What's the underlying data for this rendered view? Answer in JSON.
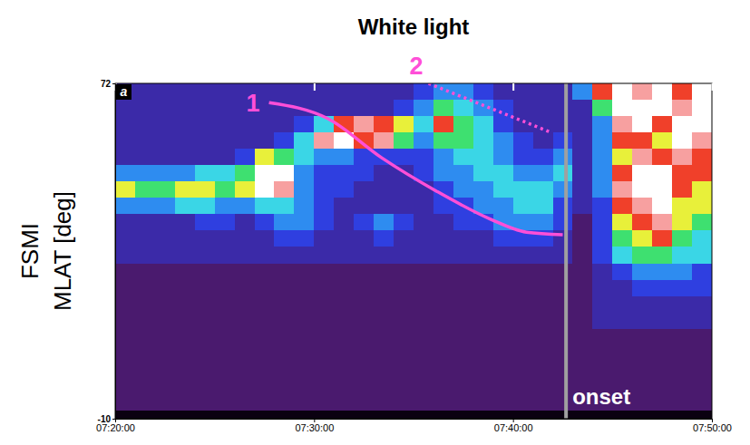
{
  "chart_data": {
    "type": "heatmap",
    "title": "White light",
    "panel": "a",
    "ylabel": [
      "FSMI",
      "MLAT [deg]"
    ],
    "xlim": [
      "07:20:00",
      "07:50:00"
    ],
    "xticks": [
      "07:20:00",
      "07:30:00",
      "07:40:00",
      "07:50:00"
    ],
    "ylim": [
      -10,
      72
    ],
    "yticks": [
      72,
      -10
    ],
    "clim": [
      0,
      10
    ],
    "x_edges": [
      "07:20:00",
      "07:21:00",
      "07:22:00",
      "07:23:00",
      "07:24:00",
      "07:25:00",
      "07:26:00",
      "07:27:00",
      "07:28:00",
      "07:29:00",
      "07:30:00",
      "07:31:00",
      "07:32:00",
      "07:33:00",
      "07:34:00",
      "07:35:00",
      "07:36:00",
      "07:37:00",
      "07:38:00",
      "07:39:00",
      "07:40:00",
      "07:41:00",
      "07:42:00",
      "07:43:00",
      "07:44:00",
      "07:45:00",
      "07:46:00",
      "07:47:00",
      "07:48:00",
      "07:49:00",
      "07:50:00"
    ],
    "y_edges": [
      72,
      68,
      64,
      60,
      56,
      52,
      48,
      44,
      40,
      36,
      32,
      28,
      24,
      20,
      16,
      12,
      8,
      4,
      0,
      -4,
      -8,
      -10
    ],
    "cells": [
      [
        2,
        2,
        2,
        2,
        2,
        4,
        7,
        4,
        2,
        2,
        2,
        1,
        1,
        1,
        1,
        1,
        1,
        1,
        1,
        1,
        0
      ],
      [
        2,
        2,
        2,
        2,
        2,
        4,
        6,
        4,
        2,
        2,
        2,
        1,
        1,
        1,
        1,
        1,
        1,
        1,
        1,
        1,
        0
      ],
      [
        2,
        2,
        2,
        2,
        2,
        4,
        6,
        4,
        2,
        2,
        2,
        1,
        1,
        1,
        1,
        1,
        1,
        1,
        1,
        1,
        0
      ],
      [
        2,
        2,
        2,
        2,
        2,
        4,
        7,
        5,
        2,
        2,
        2,
        1,
        1,
        1,
        1,
        1,
        1,
        1,
        1,
        1,
        0
      ],
      [
        2,
        2,
        2,
        2,
        2,
        5,
        7,
        5,
        3,
        2,
        2,
        1,
        1,
        1,
        1,
        1,
        1,
        1,
        1,
        1,
        0
      ],
      [
        2,
        2,
        2,
        2,
        2,
        5,
        6,
        4,
        3,
        2,
        2,
        1,
        1,
        1,
        1,
        1,
        1,
        1,
        1,
        1,
        0
      ],
      [
        2,
        2,
        2,
        2,
        3,
        6,
        7,
        4,
        2,
        2,
        2,
        1,
        1,
        1,
        1,
        1,
        1,
        1,
        1,
        1,
        0
      ],
      [
        2,
        2,
        2,
        2,
        7,
        10,
        10,
        5,
        3,
        2,
        2,
        1,
        1,
        1,
        1,
        1,
        1,
        1,
        1,
        1,
        0
      ],
      [
        2,
        2,
        2,
        3,
        6,
        10,
        9,
        5,
        4,
        3,
        2,
        1,
        1,
        1,
        1,
        1,
        1,
        1,
        1,
        1,
        0
      ],
      [
        2,
        2,
        3,
        5,
        5,
        4,
        4,
        4,
        4,
        3,
        2,
        1,
        1,
        1,
        1,
        1,
        1,
        1,
        1,
        1,
        0
      ],
      [
        2,
        2,
        5,
        9,
        4,
        3,
        3,
        3,
        3,
        2,
        2,
        1,
        1,
        1,
        1,
        1,
        1,
        1,
        1,
        1,
        0
      ],
      [
        2,
        2,
        8,
        10,
        4,
        3,
        3,
        2,
        2,
        2,
        2,
        1,
        1,
        1,
        1,
        1,
        1,
        1,
        1,
        1,
        0
      ],
      [
        2,
        2,
        9,
        8,
        3,
        3,
        2,
        2,
        3,
        2,
        2,
        1,
        1,
        1,
        1,
        1,
        1,
        1,
        1,
        1,
        0
      ],
      [
        2,
        2,
        8,
        9,
        3,
        2,
        2,
        2,
        4,
        3,
        2,
        1,
        1,
        1,
        1,
        1,
        1,
        1,
        1,
        1,
        0
      ],
      [
        2,
        3,
        7,
        6,
        3,
        2,
        2,
        2,
        3,
        2,
        2,
        1,
        1,
        1,
        1,
        1,
        1,
        1,
        1,
        1,
        0
      ],
      [
        3,
        4,
        5,
        4,
        3,
        3,
        2,
        2,
        2,
        2,
        2,
        1,
        1,
        1,
        1,
        1,
        1,
        1,
        1,
        1,
        0
      ],
      [
        4,
        6,
        8,
        6,
        4,
        4,
        3,
        3,
        2,
        2,
        2,
        1,
        1,
        1,
        1,
        1,
        1,
        1,
        1,
        1,
        0
      ],
      [
        4,
        5,
        6,
        6,
        5,
        4,
        4,
        3,
        3,
        2,
        2,
        1,
        1,
        1,
        1,
        1,
        1,
        1,
        1,
        1,
        0
      ],
      [
        3,
        4,
        5,
        5,
        5,
        5,
        4,
        4,
        3,
        2,
        2,
        1,
        1,
        1,
        1,
        1,
        1,
        1,
        1,
        1,
        0
      ],
      [
        2,
        3,
        3,
        4,
        4,
        5,
        5,
        4,
        4,
        3,
        2,
        1,
        1,
        1,
        1,
        1,
        1,
        1,
        1,
        1,
        0
      ],
      [
        2,
        2,
        2,
        3,
        3,
        4,
        5,
        5,
        4,
        3,
        2,
        1,
        1,
        1,
        1,
        1,
        1,
        1,
        1,
        1,
        0
      ],
      [
        2,
        2,
        2,
        2,
        3,
        4,
        5,
        5,
        4,
        3,
        2,
        1,
        1,
        1,
        1,
        1,
        1,
        1,
        1,
        1,
        0
      ],
      [
        2,
        2,
        2,
        3,
        4,
        5,
        4,
        3,
        3,
        2,
        2,
        1,
        1,
        1,
        1,
        1,
        1,
        1,
        1,
        1,
        0
      ],
      [
        4,
        2,
        2,
        2,
        2,
        2,
        2,
        2,
        1,
        1,
        1,
        1,
        1,
        1,
        1,
        1,
        1,
        1,
        1,
        1,
        0
      ],
      [
        8,
        6,
        4,
        4,
        4,
        4,
        4,
        3,
        3,
        3,
        3,
        2,
        2,
        2,
        2,
        1,
        1,
        1,
        1,
        1,
        0
      ],
      [
        10,
        10,
        9,
        8,
        7,
        8,
        9,
        8,
        7,
        6,
        5,
        3,
        2,
        2,
        2,
        1,
        1,
        1,
        1,
        1,
        0
      ],
      [
        9,
        10,
        10,
        8,
        9,
        10,
        10,
        9,
        8,
        7,
        6,
        4,
        3,
        2,
        2,
        1,
        1,
        1,
        1,
        1,
        0
      ],
      [
        10,
        10,
        8,
        7,
        8,
        10,
        10,
        10,
        9,
        8,
        6,
        4,
        3,
        2,
        2,
        1,
        1,
        1,
        1,
        1,
        0
      ],
      [
        8,
        9,
        10,
        10,
        9,
        8,
        8,
        7,
        7,
        6,
        5,
        4,
        3,
        2,
        2,
        1,
        1,
        1,
        1,
        1,
        0
      ],
      [
        10,
        10,
        10,
        9,
        8,
        8,
        7,
        7,
        6,
        5,
        5,
        3,
        3,
        2,
        2,
        1,
        1,
        1,
        1,
        1,
        0
      ]
    ],
    "annotations": [
      {
        "label": "1",
        "color": "#ff4fd8",
        "line_style": "solid",
        "x": [
          "07:27:44",
          "07:30:41",
          "07:33:24",
          "07:36:08",
          "07:38:52",
          "07:40:41",
          "07:42:30"
        ],
        "y": [
          67.3,
          63.4,
          53.8,
          45.7,
          38.8,
          35.6,
          35.0
        ]
      },
      {
        "label": "2",
        "color": "#ff4fd8",
        "line_style": "dotted",
        "x": [
          "07:35:45",
          "07:41:49"
        ],
        "y": [
          72,
          60.2
        ]
      }
    ],
    "onset": {
      "label": "onset",
      "x": "07:42:40",
      "color": "#a0a0a0"
    }
  }
}
